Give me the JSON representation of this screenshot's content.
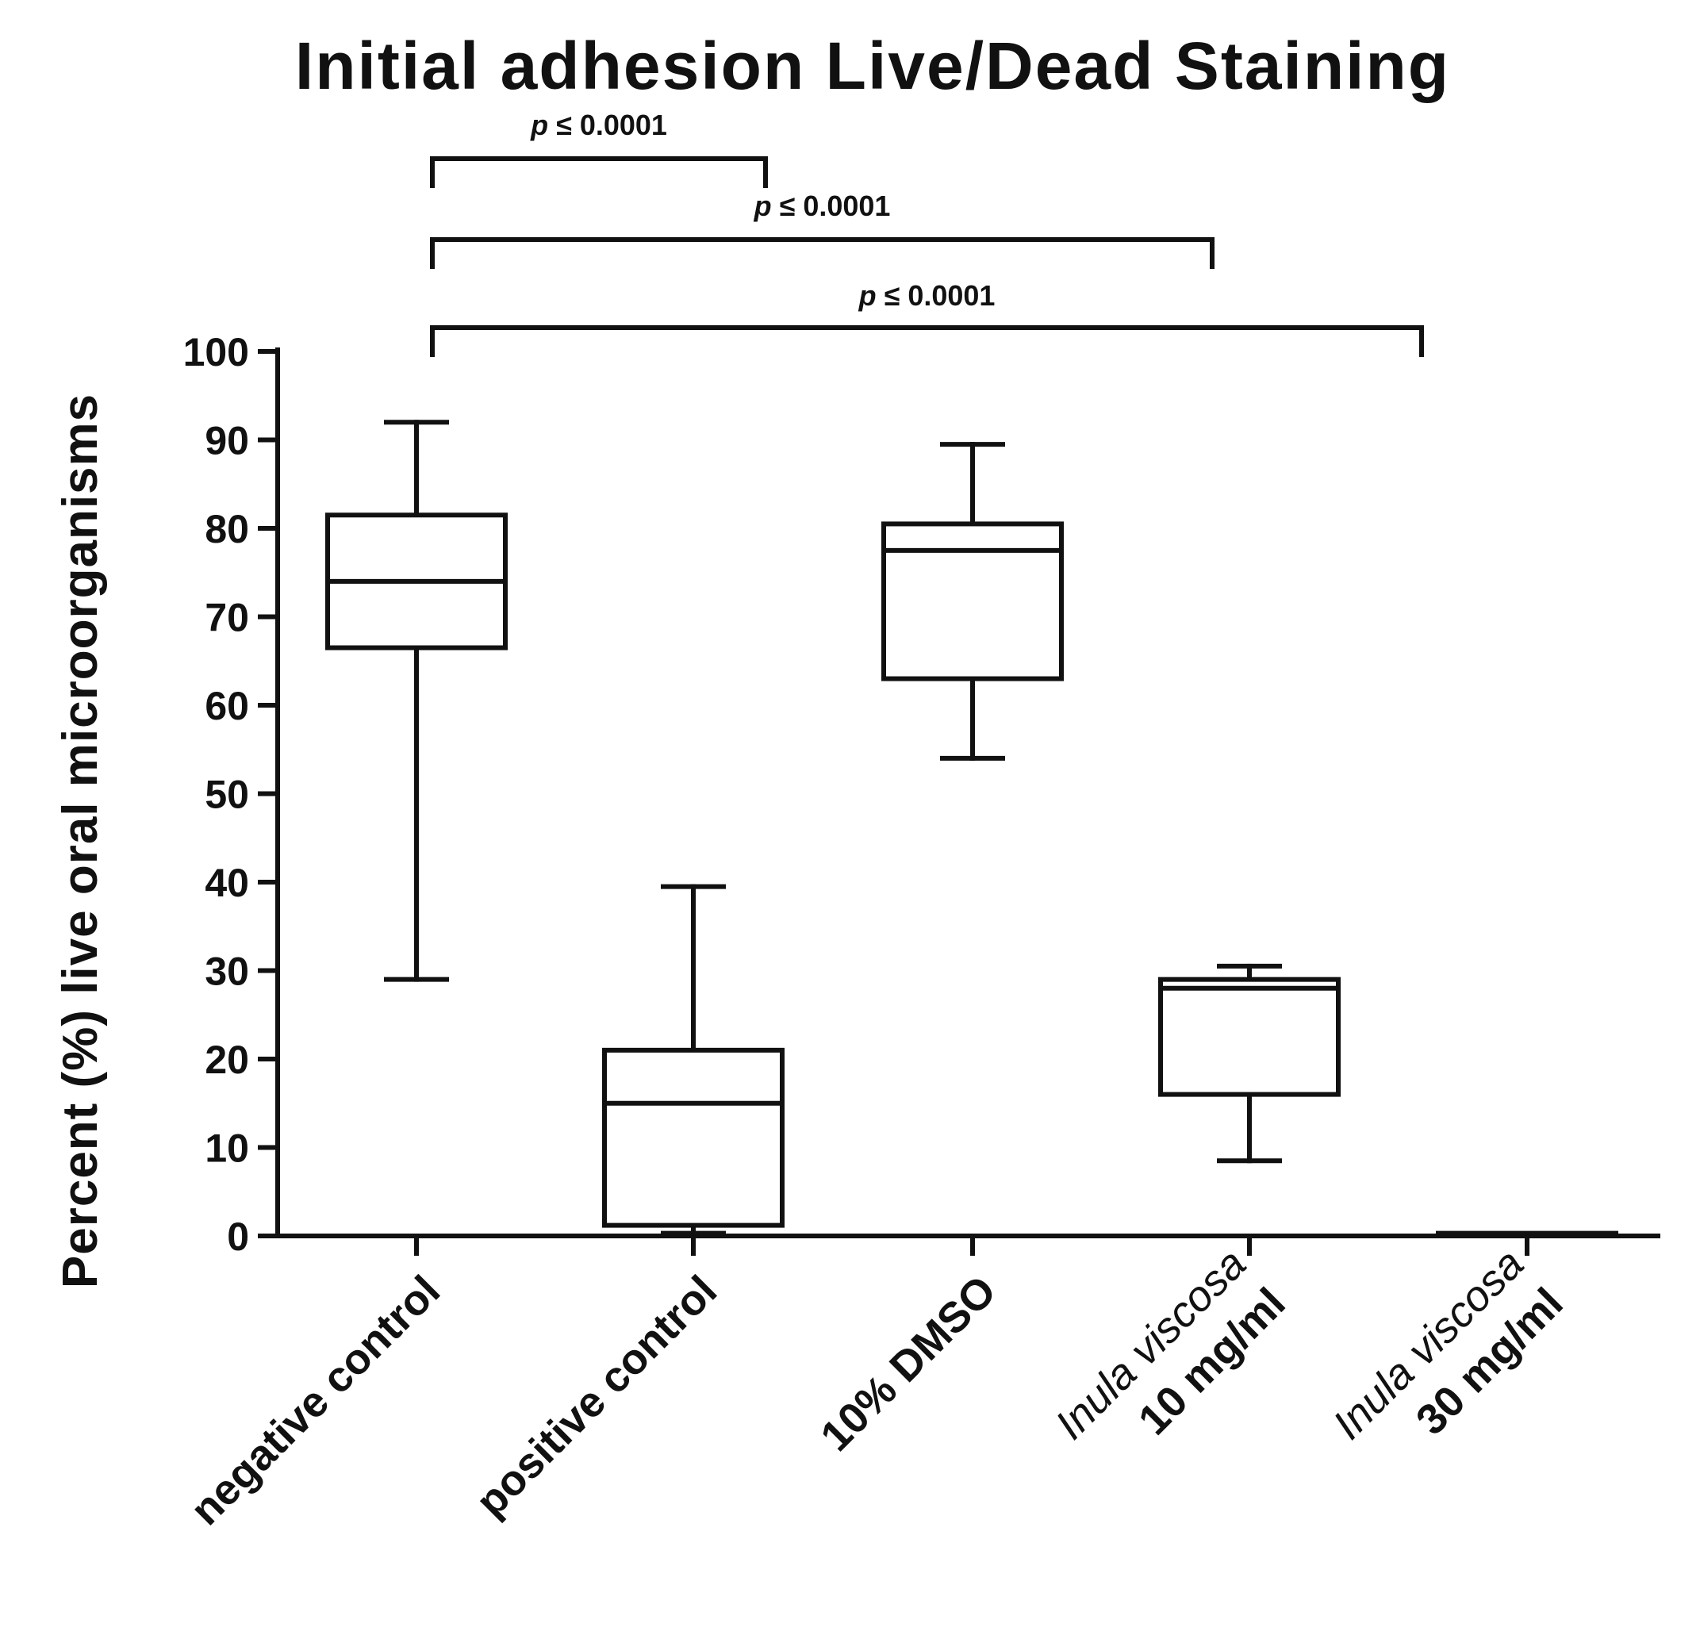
{
  "chart_data": {
    "type": "box",
    "title": "Initial adhesion Live/Dead Staining",
    "ylabel": "Percent (%) live oral microorganisms",
    "xlabel": "",
    "ylim": [
      0,
      100
    ],
    "yticks": [
      "0",
      "10",
      "20",
      "30",
      "40",
      "50",
      "60",
      "70",
      "80",
      "90",
      "100"
    ],
    "categories": [
      {
        "line1": "negative control",
        "line1_style": "bold",
        "line2": "",
        "line2_style": "bold"
      },
      {
        "line1": "positive control",
        "line1_style": "bold",
        "line2": "",
        "line2_style": "bold"
      },
      {
        "line1": "10% DMSO",
        "line1_style": "bold",
        "line2": "",
        "line2_style": "bold"
      },
      {
        "line1": "Inula viscosa",
        "line1_style": "italic",
        "line2": "10 mg/ml",
        "line2_style": "bold"
      },
      {
        "line1": "Inula viscosa",
        "line1_style": "italic",
        "line2": "30 mg/ml",
        "line2_style": "bold"
      }
    ],
    "boxes": [
      {
        "min": 29,
        "q1": 66.5,
        "median": 74,
        "q3": 81.5,
        "max": 92
      },
      {
        "min": 0.3,
        "q1": 1.2,
        "median": 15,
        "q3": 21,
        "max": 39.5
      },
      {
        "min": 54,
        "q1": 63,
        "median": 77.5,
        "q3": 80.5,
        "max": 89.5
      },
      {
        "min": 8.5,
        "q1": 16,
        "median": 28,
        "q3": 29,
        "max": 30.5
      },
      {
        "min": 0.3,
        "q1": 0.3,
        "median": 0.3,
        "q3": 0.3,
        "max": 0.3
      }
    ],
    "comparisons": [
      {
        "from": 0,
        "to": 1,
        "p_symbol": "p",
        "label": "≤ 0.0001"
      },
      {
        "from": 0,
        "to": 3,
        "p_symbol": "p",
        "label": "≤ 0.0001"
      },
      {
        "from": 0,
        "to": 4,
        "p_symbol": "p",
        "label": "≤ 0.0001"
      }
    ]
  }
}
